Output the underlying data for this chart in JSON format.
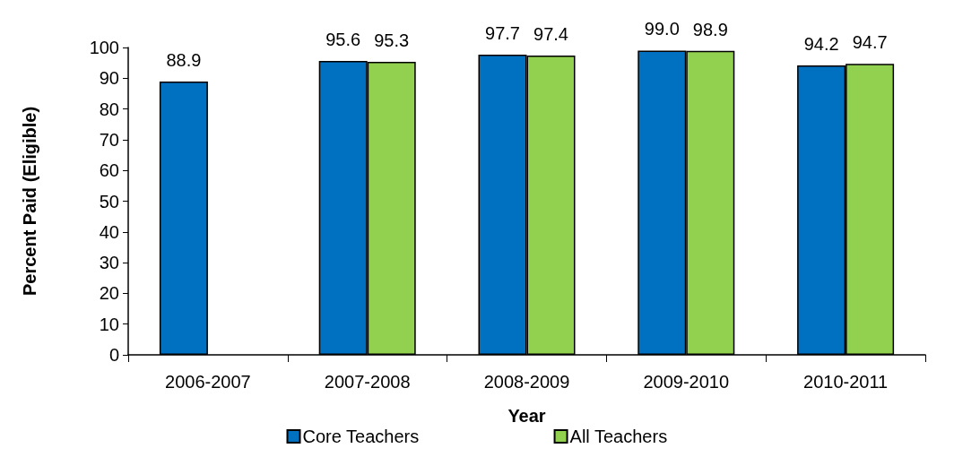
{
  "chart_data": {
    "type": "bar",
    "xlabel": "Year",
    "ylabel": "Percent Paid (Eligible)",
    "categories": [
      "2006-2007",
      "2007-2008",
      "2008-2009",
      "2009-2010",
      "2010-2011"
    ],
    "series": [
      {
        "name": "Core Teachers",
        "color": "#0070c0",
        "values": [
          88.9,
          95.6,
          97.7,
          99.0,
          94.2
        ],
        "value_labels": [
          "88.9",
          "95.6",
          "97.7",
          "99.0",
          "94.2"
        ]
      },
      {
        "name": "All Teachers",
        "color": "#92d050",
        "values": [
          null,
          95.3,
          97.4,
          98.9,
          94.7
        ],
        "value_labels": [
          null,
          "95.3",
          "97.4",
          "98.9",
          "94.7"
        ]
      }
    ],
    "ylim": [
      0,
      100
    ],
    "yticks": [
      0,
      10,
      20,
      30,
      40,
      50,
      60,
      70,
      80,
      90,
      100
    ],
    "grid": false,
    "legend": "bottom"
  }
}
